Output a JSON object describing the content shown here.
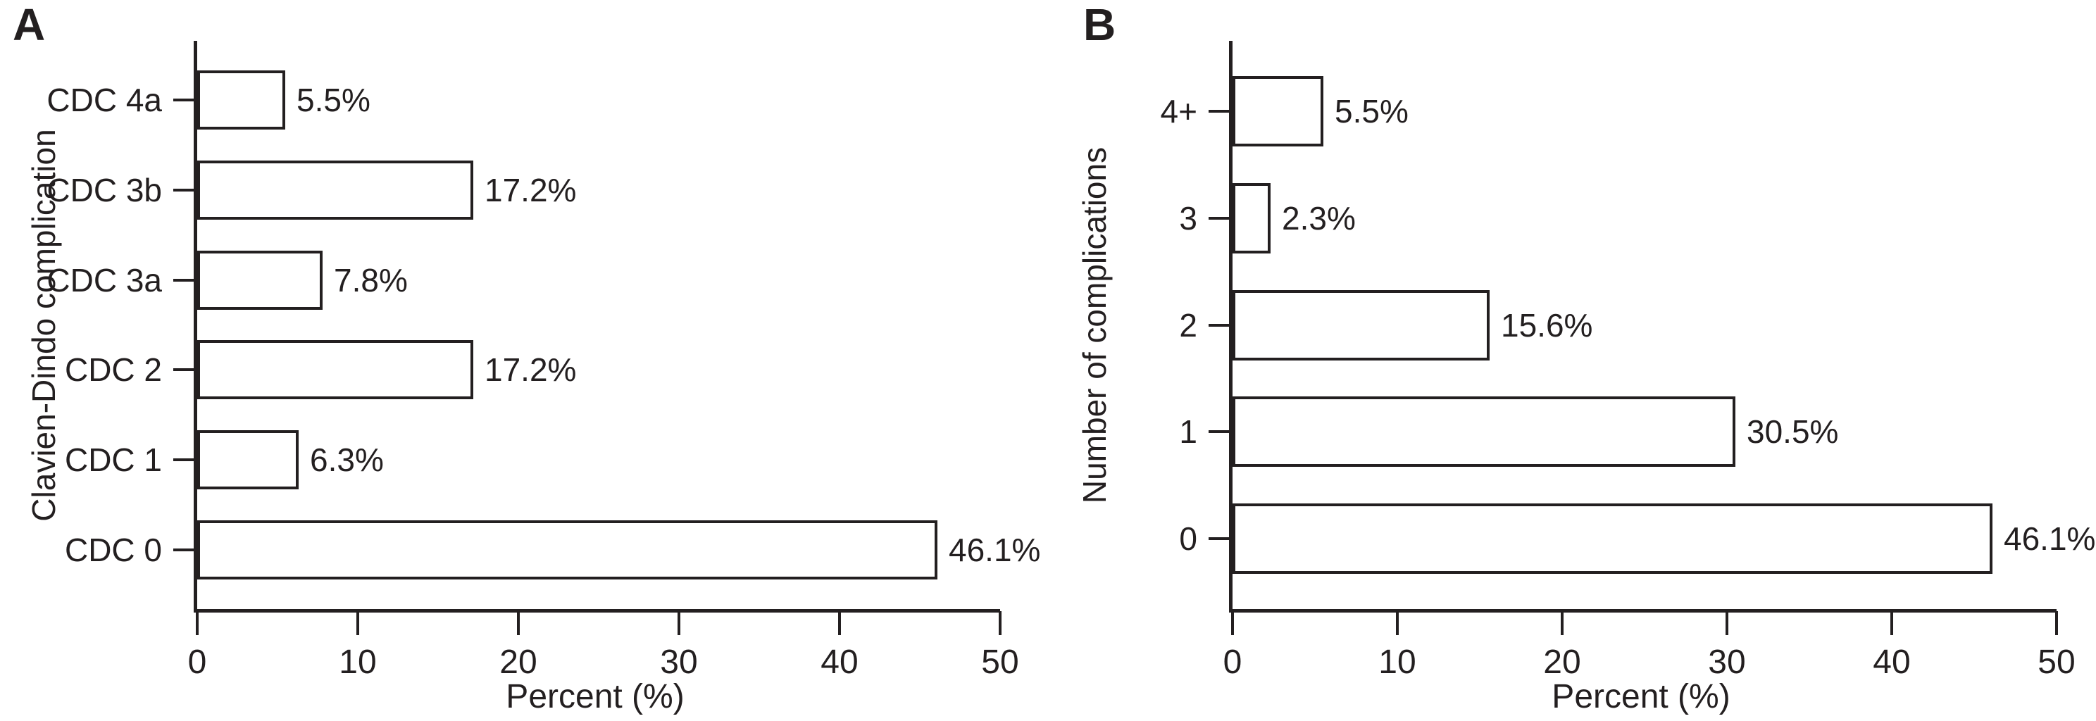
{
  "figure": {
    "background": "#ffffff",
    "text_color": "#231f20",
    "panels": [
      "A",
      "B"
    ]
  },
  "chart_data": [
    {
      "type": "bar",
      "orientation": "horizontal",
      "panel_label": "A",
      "title": "",
      "ylabel": "Clavien-Dindo complication",
      "xlabel": "Percent (%)",
      "categories": [
        "CDC 4a",
        "CDC 3b",
        "CDC 3a",
        "CDC 2",
        "CDC 1",
        "CDC 0"
      ],
      "values": [
        5.5,
        17.2,
        7.8,
        17.2,
        6.3,
        46.1
      ],
      "value_labels": [
        "5.5%",
        "17.2%",
        "7.8%",
        "17.2%",
        "6.3%",
        "46.1%"
      ],
      "xlim": [
        0,
        50
      ],
      "xticks": [
        0,
        10,
        20,
        30,
        40,
        50
      ],
      "grid": false,
      "legend": null,
      "bar_fill": "#ffffff",
      "bar_border": "#231f20"
    },
    {
      "type": "bar",
      "orientation": "horizontal",
      "panel_label": "B",
      "title": "",
      "ylabel": "Number of complications",
      "xlabel": "Percent (%)",
      "categories": [
        "4+",
        "3",
        "2",
        "1",
        "0"
      ],
      "values": [
        5.5,
        2.3,
        15.6,
        30.5,
        46.1
      ],
      "value_labels": [
        "5.5%",
        "2.3%",
        "15.6%",
        "30.5%",
        "46.1%"
      ],
      "xlim": [
        0,
        50
      ],
      "xticks": [
        0,
        10,
        20,
        30,
        40,
        50
      ],
      "grid": false,
      "legend": null,
      "bar_fill": "#ffffff",
      "bar_border": "#231f20"
    }
  ]
}
